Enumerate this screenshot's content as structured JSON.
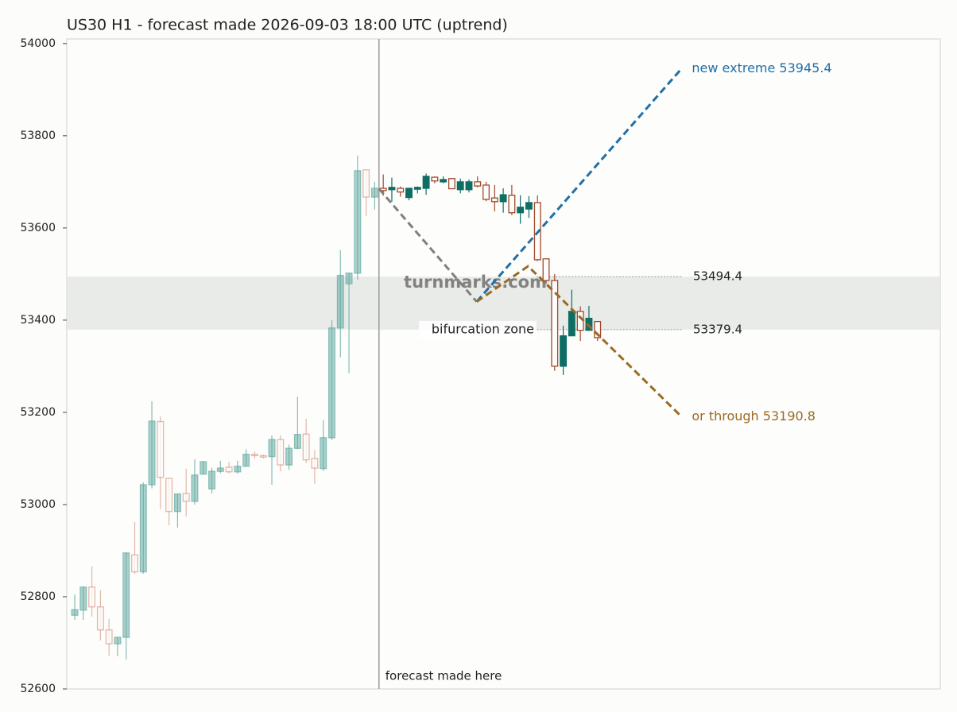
{
  "chart_data": {
    "type": "candlestick",
    "title": "US30 H1 - forecast made 2026-09-03 18:00 UTC (uptrend)",
    "ylim": [
      52600,
      54010
    ],
    "yticks": [
      52600,
      52800,
      53000,
      53200,
      53400,
      53600,
      53800,
      54000
    ],
    "xlim": [
      -0.93,
      101
    ],
    "history": {
      "up_color": "#5fa8a0",
      "down_color": "#d9a090",
      "open": [
        52760,
        52771,
        52821,
        52778,
        52728,
        52698,
        52712,
        52891,
        52854,
        53043,
        53180,
        53057,
        52985,
        53024,
        53007,
        53066,
        53034,
        53072,
        53081,
        53071,
        53083,
        53109,
        53106,
        53104,
        53141,
        53086,
        53122,
        53153,
        53100,
        53078,
        53145,
        53383,
        53479,
        53502,
        53726,
        53667
      ],
      "high": [
        52805,
        52821,
        52866,
        52814,
        52752,
        52712,
        52895,
        52962,
        53048,
        53224,
        53191,
        53057,
        53023,
        53078,
        53098,
        53093,
        53080,
        53095,
        53092,
        53095,
        53120,
        53115,
        53108,
        53150,
        53150,
        53130,
        53234,
        53186,
        53118,
        53183,
        53400,
        53552,
        53502,
        53757,
        53726,
        53700
      ],
      "low": [
        52750,
        52750,
        52757,
        52705,
        52672,
        52671,
        52664,
        52850,
        52850,
        53035,
        52990,
        52955,
        52950,
        52974,
        53000,
        53066,
        53024,
        53068,
        53068,
        53067,
        53083,
        53100,
        53100,
        53043,
        53072,
        53075,
        53120,
        53090,
        53045,
        53073,
        53140,
        53319,
        53285,
        53488,
        53626,
        53640
      ],
      "close": [
        52772,
        52821,
        52778,
        52728,
        52698,
        52712,
        52895,
        52854,
        53043,
        53181,
        53059,
        52985,
        53023,
        53007,
        53064,
        53093,
        53072,
        53079,
        53071,
        53083,
        53109,
        53106,
        53103,
        53141,
        53086,
        53122,
        53152,
        53097,
        53079,
        53145,
        53383,
        53497,
        53502,
        53724,
        53667,
        53686
      ]
    },
    "forecast": {
      "up_color": "#0e6e64",
      "down_color": "#a0482a",
      "open": [
        53686,
        53683,
        53686,
        53666,
        53684,
        53686,
        53710,
        53700,
        53707,
        53683,
        53683,
        53700,
        53693,
        53665,
        53657,
        53671,
        53633,
        53641,
        53655,
        53533,
        53486,
        53300,
        53366,
        53419,
        53378,
        53397
      ],
      "high": [
        53716,
        53709,
        53690,
        53686,
        53690,
        53718,
        53712,
        53712,
        53707,
        53707,
        53705,
        53712,
        53700,
        53693,
        53686,
        53693,
        53671,
        53669,
        53671,
        53533,
        53500,
        53388,
        53466,
        53430,
        53431,
        53397
      ],
      "low": [
        53670,
        53657,
        53668,
        53660,
        53675,
        53672,
        53697,
        53697,
        53685,
        53675,
        53677,
        53688,
        53658,
        53636,
        53633,
        53628,
        53609,
        53622,
        53528,
        53479,
        53290,
        53281,
        53366,
        53355,
        53378,
        53355
      ],
      "close": [
        53681,
        53688,
        53678,
        53686,
        53688,
        53712,
        53702,
        53705,
        53685,
        53700,
        53700,
        53691,
        53662,
        53657,
        53672,
        53633,
        53645,
        53655,
        53531,
        53486,
        53300,
        53366,
        53419,
        53378,
        53404,
        53362
      ]
    },
    "zone": {
      "low": 53379.4,
      "high": 53494.4,
      "label": "bifurcation zone",
      "line_start": [
        53.9,
        46.9
      ],
      "line_end": 70.8
    },
    "forecast_line": {
      "x": 35.5,
      "label": "forecast made here"
    },
    "watermark": "turnmarks.com",
    "projections": [
      {
        "color": "#808080",
        "x": [
          35.5,
          46.9
        ],
        "y": [
          53685,
          53440
        ]
      },
      {
        "color": "#1f6fa8",
        "x": [
          46.9,
          70.8
        ],
        "y": [
          53440,
          53945.4
        ],
        "label": "new extreme 53945.4"
      },
      {
        "color": "#9a6a25",
        "x": [
          46.9,
          52.9,
          70.8
        ],
        "y": [
          53440,
          53517,
          53190.8
        ],
        "label": "or through 53190.8"
      }
    ]
  }
}
